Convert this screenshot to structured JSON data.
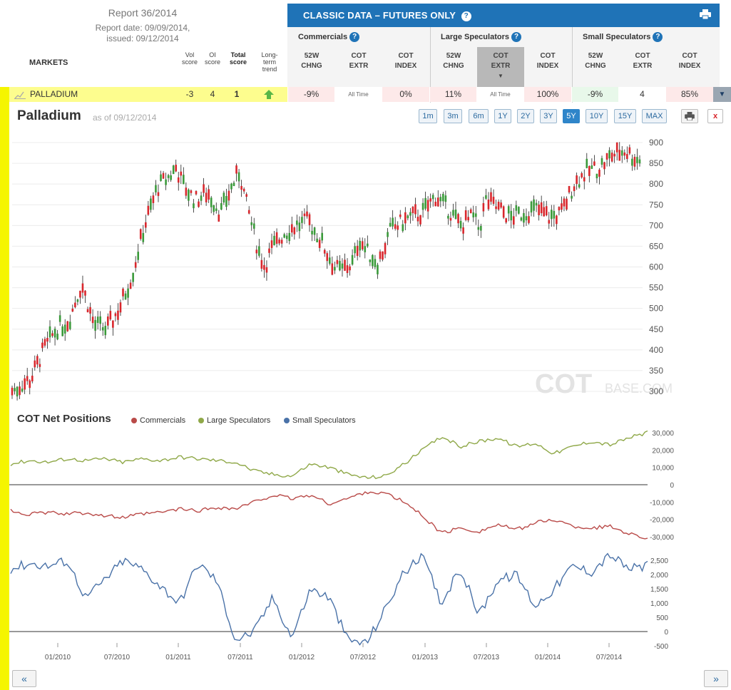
{
  "report": {
    "title": "Report 36/2014",
    "report_date": "Report date: 09/09/2014,",
    "issued": "issued: 09/12/2014",
    "markets_label": "MARKETS",
    "col_vol": "Vol score",
    "col_oi": "OI score",
    "col_total": "Total score",
    "col_trend": "Long-term trend"
  },
  "header": {
    "title": "CLASSIC DATA – FUTURES ONLY",
    "groups": [
      "Commercials",
      "Large Speculators",
      "Small Speculators"
    ],
    "sub_cols": [
      [
        "52W",
        "CHNG"
      ],
      [
        "COT",
        "EXTR"
      ],
      [
        "COT",
        "INDEX"
      ],
      [
        "52W",
        "CHNG"
      ],
      [
        "COT",
        "EXTR"
      ],
      [
        "COT",
        "INDEX"
      ],
      [
        "52W",
        "CHNG"
      ],
      [
        "COT",
        "EXTR"
      ],
      [
        "COT",
        "INDEX"
      ]
    ]
  },
  "market_row": {
    "name": "PALLADIUM",
    "vol_score": "-3",
    "oi_score": "4",
    "total_score": "1",
    "comm": {
      "chng": "-9%",
      "extr": "All Time",
      "index": "0%"
    },
    "large": {
      "chng": "11%",
      "extr": "All Time",
      "index": "100%"
    },
    "small": {
      "chng": "-9%",
      "extr": "4",
      "index": "85%"
    }
  },
  "chart_header": {
    "title": "Palladium",
    "as_of": "as of 09/12/2014",
    "ranges": [
      "1m",
      "3m",
      "6m",
      "1Y",
      "2Y",
      "3Y",
      "5Y",
      "10Y",
      "15Y",
      "MAX"
    ],
    "active_range": "5Y",
    "watermark_main": "COT",
    "watermark_sub": "BASE.COM"
  },
  "cot_panel": {
    "title": "COT Net Positions",
    "legend": [
      {
        "name": "Commercials",
        "color": "#b94a48"
      },
      {
        "name": "Large Speculators",
        "color": "#8fa848"
      },
      {
        "name": "Small Speculators",
        "color": "#4a72a8"
      }
    ]
  },
  "colors": {
    "up": "#3a9a3a",
    "down": "#d9262c",
    "accent": "#1f73b7"
  },
  "chart_data": [
    {
      "type": "candlestick",
      "title": "Palladium",
      "ylim": [
        280,
        920
      ],
      "y_ticks": [
        300,
        350,
        400,
        450,
        500,
        550,
        600,
        650,
        700,
        750,
        800,
        850,
        900
      ],
      "x_ticks": [
        "01/2010",
        "07/2010",
        "01/2011",
        "07/2011",
        "01/2012",
        "07/2012",
        "01/2013",
        "07/2013",
        "01/2014",
        "07/2014"
      ],
      "x": [
        2009.75,
        2009.9,
        2010.0,
        2010.1,
        2010.2,
        2010.3,
        2010.4,
        2010.5,
        2010.6,
        2010.7,
        2010.8,
        2010.9,
        2011.0,
        2011.05,
        2011.1,
        2011.2,
        2011.3,
        2011.4,
        2011.5,
        2011.55,
        2011.6,
        2011.7,
        2011.75,
        2011.8,
        2011.9,
        2012.0,
        2012.1,
        2012.2,
        2012.3,
        2012.35,
        2012.45,
        2012.5,
        2012.55,
        2012.65,
        2012.75,
        2012.8,
        2012.9,
        2013.0,
        2013.1,
        2013.2,
        2013.3,
        2013.4,
        2013.45,
        2013.5,
        2013.6,
        2013.7,
        2013.8,
        2013.9,
        2014.0,
        2014.1,
        2014.2,
        2014.3,
        2014.4,
        2014.5,
        2014.6,
        2014.7
      ],
      "close": [
        300,
        330,
        400,
        450,
        470,
        560,
        460,
        450,
        500,
        580,
        700,
        790,
        820,
        840,
        800,
        760,
        780,
        730,
        800,
        830,
        760,
        640,
        600,
        640,
        680,
        700,
        710,
        660,
        600,
        590,
        610,
        670,
        640,
        610,
        690,
        700,
        720,
        730,
        770,
        740,
        700,
        720,
        690,
        760,
        740,
        720,
        730,
        740,
        720,
        730,
        800,
        830,
        840,
        870,
        880,
        860
      ]
    },
    {
      "type": "line",
      "title": "COT Net Positions",
      "series": [
        {
          "name": "Large Speculators",
          "values": [
            12000,
            14000,
            13000,
            15000,
            14000,
            15000,
            13000,
            15000,
            14000,
            16000,
            15000,
            14000,
            13000,
            8000,
            6000,
            5000,
            12000,
            10000,
            6000,
            4000,
            5000,
            12000,
            20000,
            28000,
            22000,
            25000,
            27000,
            22000,
            24000,
            18000,
            22000,
            25000,
            23000,
            27000,
            30000
          ]
        },
        {
          "name": "Commercials",
          "values": [
            -15000,
            -17000,
            -16000,
            -17000,
            -16000,
            -18000,
            -19000,
            -17000,
            -16000,
            -14000,
            -15000,
            -13000,
            -14000,
            -10000,
            -6000,
            -8000,
            -6000,
            -11000,
            -8000,
            -4000,
            -5000,
            -10000,
            -18000,
            -28000,
            -25000,
            -27000,
            -23000,
            -26000,
            -22000,
            -20000,
            -24000,
            -25000,
            -24000,
            -28000,
            -31000
          ]
        },
        {
          "name": "Small Speculators",
          "values": [
            2200,
            2400,
            2300,
            2500,
            1200,
            1800,
            2500,
            2200,
            1600,
            1000,
            2400,
            1800,
            -300,
            0,
            1200,
            -200,
            1500,
            1200,
            -300,
            -400,
            800,
            2100,
            2600,
            1000,
            2200,
            600,
            1800,
            2000,
            900,
            1500,
            2300,
            2100,
            2700,
            2200,
            2300
          ]
        }
      ],
      "y_ticks_top": [
        "30,000",
        "20,000",
        "10,000",
        "0",
        "-10,000",
        "-20,000",
        "-30,000"
      ],
      "y_ticks_bottom": [
        "2,500",
        "2,000",
        "1,500",
        "1,000",
        "500",
        "0",
        "-500"
      ]
    }
  ]
}
